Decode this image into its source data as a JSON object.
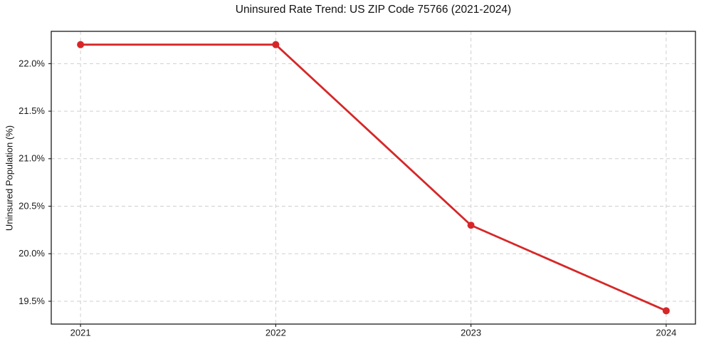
{
  "chart_data": {
    "type": "line",
    "title": "Uninsured Rate Trend: US ZIP Code 75766 (2021-2024)",
    "xlabel": "",
    "ylabel": "Uninsured Population (%)",
    "x": [
      2021,
      2022,
      2023,
      2024
    ],
    "x_tick_labels": [
      "2021",
      "2022",
      "2023",
      "2024"
    ],
    "values": [
      22.2,
      22.2,
      20.3,
      19.4
    ],
    "y_ticks": [
      19.5,
      20.0,
      20.5,
      21.0,
      21.5,
      22.0
    ],
    "y_tick_labels": [
      "19.5%",
      "20.0%",
      "20.5%",
      "21.0%",
      "21.5%",
      "22.0%"
    ],
    "xlim": [
      2020.85,
      2024.15
    ],
    "ylim": [
      19.26,
      22.34
    ],
    "grid": true,
    "grid_style": "dashed",
    "legend": false,
    "line_color": "#d62728",
    "marker": "circle",
    "background": "#ffffff"
  }
}
